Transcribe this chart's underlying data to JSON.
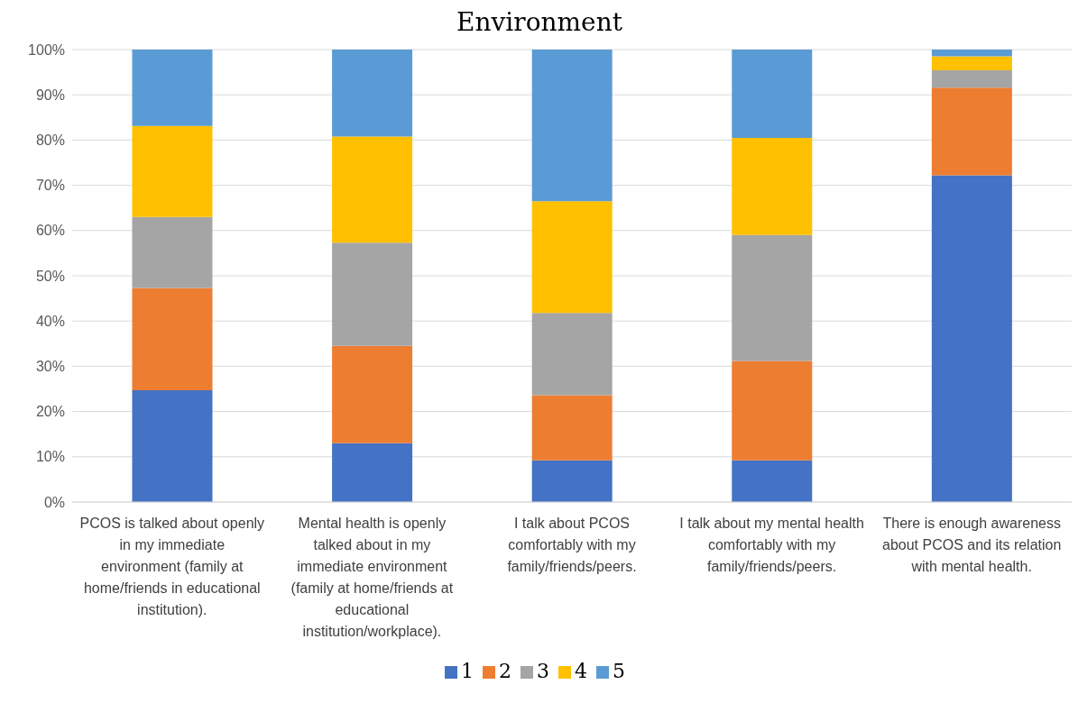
{
  "chart_data": {
    "type": "bar",
    "stacked": true,
    "title": "Environment",
    "categories": [
      "PCOS is talked about openly in my immediate environment (family at home/friends in educational institution).",
      "Mental health is openly talked about in my immediate environment (family at home/friends at educational institution/workplace).",
      "I talk about PCOS comfortably with my family/friends/peers.",
      "I talk about my mental health comfortably with my family/friends/peers.",
      "There is enough awareness about PCOS and its relation with mental health."
    ],
    "series": [
      {
        "name": "1",
        "color": "#4472c4",
        "values": [
          24.7,
          13.0,
          9.2,
          9.2,
          72.2
        ]
      },
      {
        "name": "2",
        "color": "#ed7d31",
        "values": [
          22.6,
          21.5,
          14.4,
          22.0,
          19.4
        ]
      },
      {
        "name": "3",
        "color": "#a5a5a5",
        "values": [
          15.7,
          22.8,
          18.2,
          27.8,
          3.8
        ]
      },
      {
        "name": "4",
        "color": "#ffc000",
        "values": [
          20.1,
          23.5,
          24.7,
          21.5,
          3.1
        ]
      },
      {
        "name": "5",
        "color": "#5b9bd5",
        "values": [
          16.9,
          19.2,
          33.5,
          19.5,
          1.5
        ]
      }
    ],
    "ylim": [
      0,
      100
    ],
    "yticks": [
      {
        "value": 0,
        "label": "0%"
      },
      {
        "value": 10,
        "label": "10%"
      },
      {
        "value": 20,
        "label": "20%"
      },
      {
        "value": 30,
        "label": "30%"
      },
      {
        "value": 40,
        "label": "40%"
      },
      {
        "value": 50,
        "label": "50%"
      },
      {
        "value": 60,
        "label": "60%"
      },
      {
        "value": 70,
        "label": "70%"
      },
      {
        "value": 80,
        "label": "80%"
      },
      {
        "value": 90,
        "label": "90%"
      },
      {
        "value": 100,
        "label": "100%"
      }
    ],
    "grid": "y",
    "legend": "bottom"
  }
}
